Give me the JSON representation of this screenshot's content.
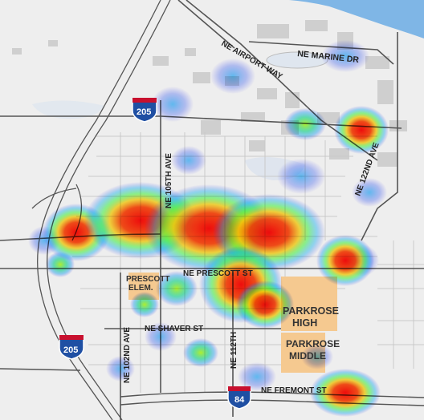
{
  "map": {
    "water_color": "#7fb6e6",
    "land_color": "#eeeeee",
    "block_color": "#d4d4d4",
    "school_color": "#f5c990"
  },
  "labels": {
    "ne_marine_dr": "NE MARINE DR",
    "ne_airport_way": "NE AIRPORT WAY",
    "ne_105th_ave": "NE 105TH AVE",
    "ne_122nd_ave": "NE 122ND AVE",
    "ne_prescott_st": "NE PRESCOTT ST",
    "prescott_elem_line1": "PRESCOTT",
    "prescott_elem_line2": "ELEM.",
    "parkrose_high_line1": "PARKROSE",
    "parkrose_high_line2": "HIGH",
    "parkrose_middle_line1": "PARKROSE",
    "parkrose_middle_line2": "MIDDLE",
    "ne_shaver_st": "NE SHAVER ST",
    "ne_102nd_ave": "NE 102ND AVE",
    "ne_112th": "NE 112TH",
    "ne_fremont_st": "NE FREMONT ST"
  },
  "shields": {
    "i205_top": "205",
    "i205_bottom": "205",
    "i84": "84"
  },
  "heatmap": {
    "legend": "none",
    "hotspots": [
      {
        "name": "core-west",
        "intensity": 1.0
      },
      {
        "name": "core-center",
        "intensity": 1.0
      },
      {
        "name": "core-south",
        "intensity": 0.95
      },
      {
        "name": "west-edge",
        "intensity": 0.95
      },
      {
        "name": "ne-122nd-north",
        "intensity": 0.95
      },
      {
        "name": "ne-122nd-mid",
        "intensity": 0.8
      },
      {
        "name": "fremont-east",
        "intensity": 0.9
      },
      {
        "name": "prescott-elem",
        "intensity": 0.55
      }
    ]
  }
}
